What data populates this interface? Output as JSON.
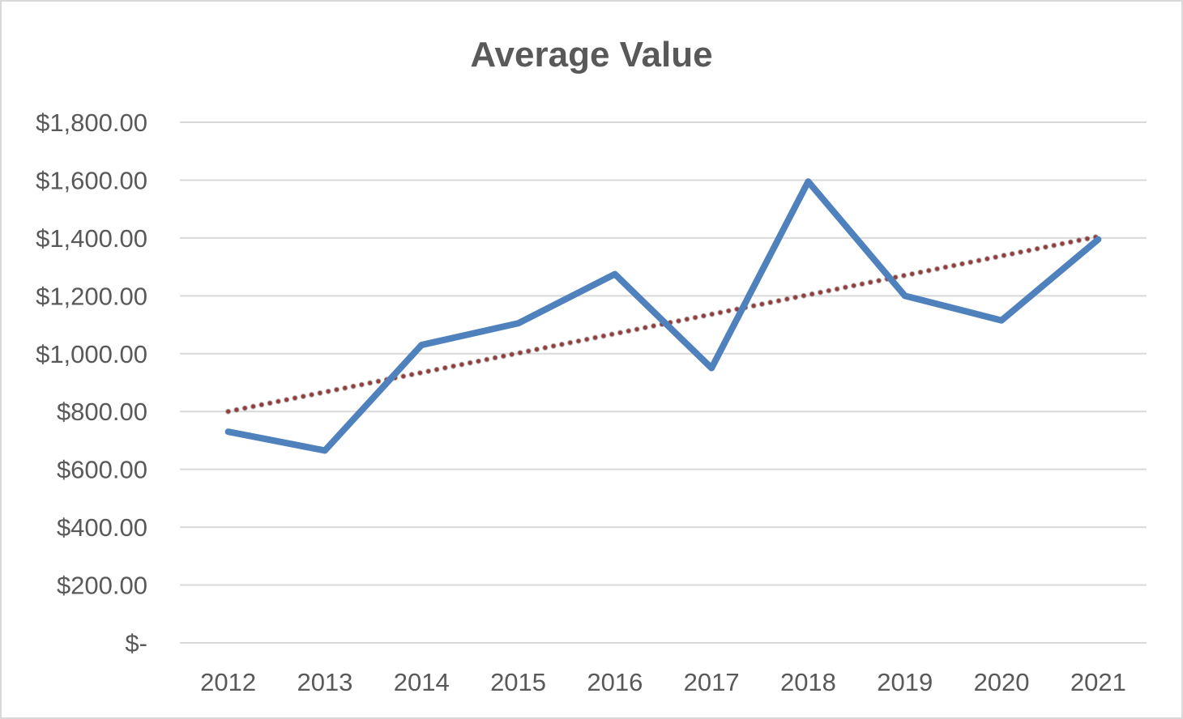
{
  "chart_data": {
    "type": "line",
    "title": "Average Value",
    "xlabel": "",
    "ylabel": "",
    "categories": [
      "2012",
      "2013",
      "2014",
      "2015",
      "2016",
      "2017",
      "2018",
      "2019",
      "2020",
      "2021"
    ],
    "series": [
      {
        "values": [
          730,
          665,
          1030,
          1105,
          1275,
          950,
          1595,
          1200,
          1115,
          1395
        ],
        "color": "#4f81bd"
      }
    ],
    "trendline": {
      "type": "linear",
      "start": 800,
      "end": 1405,
      "color": "#c0504d",
      "style": "dotted"
    },
    "ylim": [
      0,
      1800
    ],
    "y_ticks": [
      0,
      200,
      400,
      600,
      800,
      1000,
      1200,
      1400,
      1600,
      1800
    ],
    "y_tick_labels": [
      "$-",
      "$200.00",
      "$400.00",
      "$600.00",
      "$800.00",
      "$1,000.00",
      "$1,200.00",
      "$1,400.00",
      "$1,600.00",
      "$1,800.00"
    ],
    "grid": true,
    "legend": "none",
    "colors": {
      "gridline": "#d9d9d9",
      "text": "#595959",
      "border": "#d9d9d9"
    }
  }
}
